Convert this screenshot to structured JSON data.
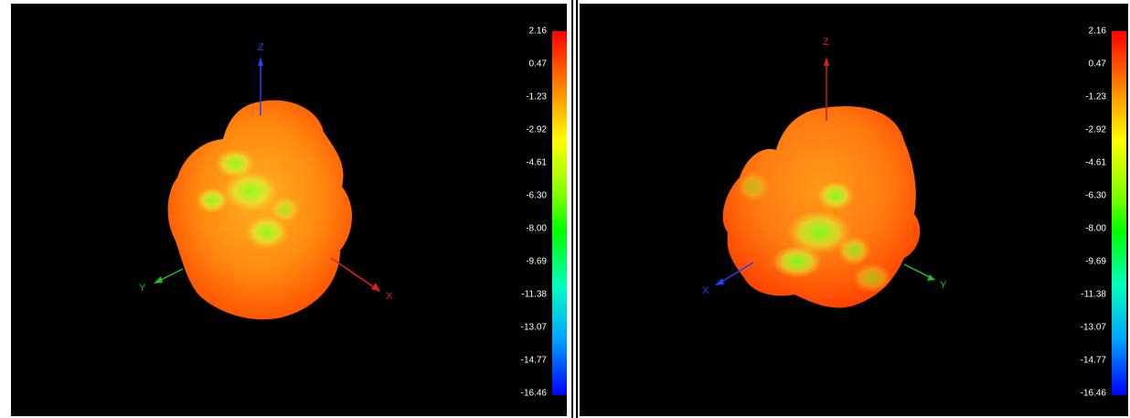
{
  "colorbar": {
    "ticks": [
      "2.16",
      "0.47",
      "-1.23",
      "-2.92",
      "-4.61",
      "-6.30",
      "-8.00",
      "-9.69",
      "-11.38",
      "-13.07",
      "-14.77",
      "-16.46"
    ]
  },
  "left_view": {
    "axis_labels": {
      "z": "Z",
      "y": "Y",
      "x": "X"
    }
  },
  "right_view": {
    "axis_labels": {
      "z": "Z",
      "x": "X",
      "y": "Y"
    }
  }
}
